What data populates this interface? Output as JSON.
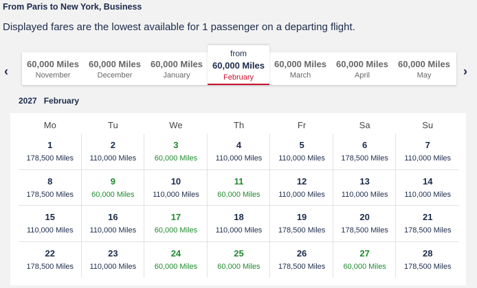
{
  "header": {
    "title": "From Paris to New York, Business",
    "subtitle": "Displayed fares are the lowest available for 1 passenger on a departing flight."
  },
  "carousel": {
    "from_label": "from",
    "months": [
      {
        "price": "60,000 Miles",
        "month": "November"
      },
      {
        "price": "60,000 Miles",
        "month": "December"
      },
      {
        "price": "60,000 Miles",
        "month": "January"
      },
      {
        "price": "60,000 Miles",
        "month": "February",
        "selected": true
      },
      {
        "price": "60,000 Miles",
        "month": "March"
      },
      {
        "price": "60,000 Miles",
        "month": "April"
      },
      {
        "price": "60,000 Miles",
        "month": "May"
      }
    ]
  },
  "calendar": {
    "year": "2027",
    "month": "February",
    "weekdays": [
      "Mo",
      "Tu",
      "We",
      "Th",
      "Fr",
      "Sa",
      "Su"
    ],
    "lowest_color": "#1e8a2e",
    "normal_color": "#1b2a4a",
    "weeks": [
      [
        {
          "day": "1",
          "price": "178,500 Miles"
        },
        {
          "day": "2",
          "price": "110,000 Miles"
        },
        {
          "day": "3",
          "price": "60,000 Miles",
          "lowest": true
        },
        {
          "day": "4",
          "price": "110,000 Miles"
        },
        {
          "day": "5",
          "price": "110,000 Miles"
        },
        {
          "day": "6",
          "price": "178,500 Miles"
        },
        {
          "day": "7",
          "price": "110,000 Miles"
        }
      ],
      [
        {
          "day": "8",
          "price": "178,500 Miles"
        },
        {
          "day": "9",
          "price": "60,000 Miles",
          "lowest": true
        },
        {
          "day": "10",
          "price": "110,000 Miles"
        },
        {
          "day": "11",
          "price": "60,000 Miles",
          "lowest": true
        },
        {
          "day": "12",
          "price": "110,000 Miles"
        },
        {
          "day": "13",
          "price": "110,000 Miles"
        },
        {
          "day": "14",
          "price": "110,000 Miles"
        }
      ],
      [
        {
          "day": "15",
          "price": "110,000 Miles"
        },
        {
          "day": "16",
          "price": "110,000 Miles"
        },
        {
          "day": "17",
          "price": "60,000 Miles",
          "lowest": true
        },
        {
          "day": "18",
          "price": "110,000 Miles"
        },
        {
          "day": "19",
          "price": "178,500 Miles"
        },
        {
          "day": "20",
          "price": "178,500 Miles"
        },
        {
          "day": "21",
          "price": "178,500 Miles"
        }
      ],
      [
        {
          "day": "22",
          "price": "178,500 Miles"
        },
        {
          "day": "23",
          "price": "110,000 Miles"
        },
        {
          "day": "24",
          "price": "60,000 Miles",
          "lowest": true
        },
        {
          "day": "25",
          "price": "60,000 Miles",
          "lowest": true
        },
        {
          "day": "26",
          "price": "178,500 Miles"
        },
        {
          "day": "27",
          "price": "60,000 Miles",
          "lowest": true
        },
        {
          "day": "28",
          "price": "178,500 Miles"
        }
      ]
    ]
  }
}
